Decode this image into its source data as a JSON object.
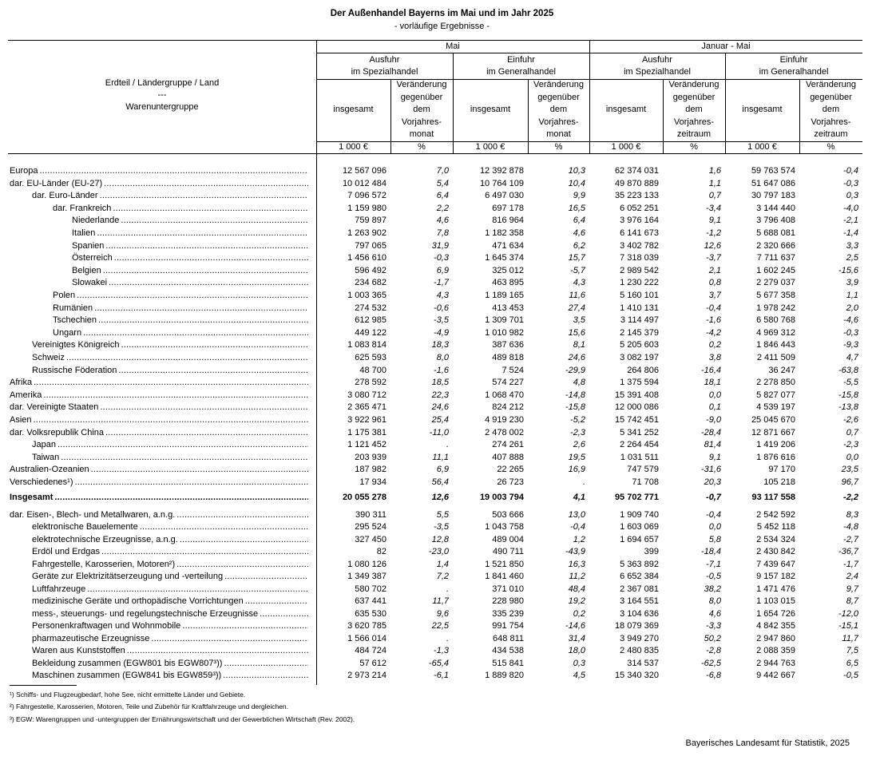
{
  "title": "Der Außenhandel Bayerns im Mai und im Jahr 2025",
  "subtitle": "- vorläufige Ergebnisse -",
  "header": {
    "row_label": [
      "Erdteil / Ländergruppe / Land",
      "---",
      "Warenuntergruppe"
    ],
    "periods": [
      "Mai",
      "Januar - Mai"
    ],
    "groups": [
      [
        "Ausfuhr",
        "im Spezialhandel"
      ],
      [
        "Einfuhr",
        "im Generalhandel"
      ],
      [
        "Ausfuhr",
        "im Spezialhandel"
      ],
      [
        "Einfuhr",
        "im Generalhandel"
      ]
    ],
    "sub": [
      [
        "insgesamt"
      ],
      [
        "Veränderung",
        "gegenüber",
        "dem",
        "Vorjahres-",
        "monat"
      ],
      [
        "insgesamt"
      ],
      [
        "Veränderung",
        "gegenüber",
        "dem",
        "Vorjahres-",
        "monat"
      ],
      [
        "insgesamt"
      ],
      [
        "Veränderung",
        "gegenüber",
        "dem",
        "Vorjahres-",
        "zeitraum"
      ],
      [
        "insgesamt"
      ],
      [
        "Veränderung",
        "gegenüber",
        "dem",
        "Vorjahres-",
        "zeitraum"
      ]
    ],
    "units": [
      "1 000 €",
      "%",
      "1 000 €",
      "%",
      "1 000 €",
      "%",
      "1 000 €",
      "%"
    ]
  },
  "regions": [
    {
      "label": "Europa",
      "level": 0,
      "values": [
        "12 567 096",
        "7,0",
        "12 392 878",
        "10,3",
        "62 374 031",
        "1,6",
        "59 763 574",
        "-0,4"
      ]
    },
    {
      "label": "dar. EU-Länder (EU-27)",
      "level": 0,
      "values": [
        "10 012 484",
        "5,4",
        "10 764 109",
        "10,4",
        "49 870 889",
        "1,1",
        "51 647 086",
        "-0,3"
      ]
    },
    {
      "label": "dar. Euro-Länder",
      "level": 1,
      "values": [
        "7 096 572",
        "6,4",
        "6 497 030",
        "9,9",
        "35 223 133",
        "0,7",
        "30 797 183",
        "0,3"
      ]
    },
    {
      "label": "dar. Frankreich",
      "level": 2,
      "values": [
        "1 159 980",
        "2,2",
        "697 178",
        "16,5",
        "6 052 251",
        "-3,4",
        "3 144 440",
        "-4,0"
      ]
    },
    {
      "label": "Niederlande",
      "level": 3,
      "values": [
        "759 897",
        "4,6",
        "816 964",
        "6,4",
        "3 976 164",
        "9,1",
        "3 796 408",
        "-2,1"
      ]
    },
    {
      "label": "Italien",
      "level": 3,
      "values": [
        "1 263 902",
        "7,8",
        "1 182 358",
        "4,6",
        "6 141 673",
        "-1,2",
        "5 688 081",
        "-1,4"
      ]
    },
    {
      "label": "Spanien",
      "level": 3,
      "values": [
        "797 065",
        "31,9",
        "471 634",
        "6,2",
        "3 402 782",
        "12,6",
        "2 320 666",
        "3,3"
      ]
    },
    {
      "label": "Österreich",
      "level": 3,
      "values": [
        "1 456 610",
        "-0,3",
        "1 645 374",
        "15,7",
        "7 318 039",
        "-3,7",
        "7 711 637",
        "2,5"
      ]
    },
    {
      "label": "Belgien",
      "level": 3,
      "values": [
        "596 492",
        "6,9",
        "325 012",
        "-5,7",
        "2 989 542",
        "2,1",
        "1 602 245",
        "-15,6"
      ]
    },
    {
      "label": "Slowakei",
      "level": 3,
      "values": [
        "234 682",
        "-1,7",
        "463 895",
        "4,3",
        "1 230 222",
        "0,8",
        "2 279 037",
        "3,9"
      ]
    },
    {
      "label": "Polen",
      "level": 2,
      "values": [
        "1 003 365",
        "4,3",
        "1 189 165",
        "11,6",
        "5 160 101",
        "3,7",
        "5 677 358",
        "1,1"
      ]
    },
    {
      "label": "Rumänien",
      "level": 2,
      "values": [
        "274 532",
        "-0,6",
        "413 453",
        "27,4",
        "1 410 131",
        "-0,4",
        "1 978 242",
        "2,0"
      ]
    },
    {
      "label": "Tschechien",
      "level": 2,
      "values": [
        "612 985",
        "-3,5",
        "1 309 701",
        "3,5",
        "3 114 497",
        "-1,6",
        "6 580 768",
        "-4,6"
      ]
    },
    {
      "label": "Ungarn",
      "level": 2,
      "values": [
        "449 122",
        "-4,9",
        "1 010 982",
        "15,6",
        "2 145 379",
        "-4,2",
        "4 969 312",
        "-0,3"
      ]
    },
    {
      "label": "Vereinigtes Königreich",
      "level": 1,
      "values": [
        "1 083 814",
        "18,3",
        "387 636",
        "8,1",
        "5 205 603",
        "0,2",
        "1 846 443",
        "-9,3"
      ]
    },
    {
      "label": "Schweiz",
      "level": 1,
      "values": [
        "625 593",
        "8,0",
        "489 818",
        "24,6",
        "3 082 197",
        "3,8",
        "2 411 509",
        "4,7"
      ]
    },
    {
      "label": "Russische Föderation",
      "level": 1,
      "values": [
        "48 700",
        "-1,6",
        "7 524",
        "-29,9",
        "264 806",
        "-16,4",
        "36 247",
        "-63,8"
      ]
    },
    {
      "label": "Afrika",
      "level": 0,
      "values": [
        "278 592",
        "18,5",
        "574 227",
        "4,8",
        "1 375 594",
        "18,1",
        "2 278 850",
        "-5,5"
      ]
    },
    {
      "label": "Amerika",
      "level": 0,
      "values": [
        "3 080 712",
        "22,3",
        "1 068 470",
        "-14,8",
        "15 391 408",
        "0,0",
        "5 827 077",
        "-15,8"
      ]
    },
    {
      "label": "dar. Vereinigte Staaten",
      "level": 0,
      "values": [
        "2 365 471",
        "24,6",
        "824 212",
        "-15,8",
        "12 000 086",
        "0,1",
        "4 539 197",
        "-13,8"
      ]
    },
    {
      "label": "Asien",
      "level": 0,
      "values": [
        "3 922 961",
        "25,4",
        "4 919 230",
        "-5,2",
        "15 742 451",
        "-9,0",
        "25 045 670",
        "-2,6"
      ]
    },
    {
      "label": "dar. Volksrepublik China",
      "level": 0,
      "values": [
        "1 175 381",
        "-11,0",
        "2 478 002",
        "-2,3",
        "5 341 252",
        "-28,4",
        "12 871 667",
        "0,7"
      ]
    },
    {
      "label": "Japan",
      "level": 1,
      "values": [
        "1 121 452",
        ".",
        "274 261",
        "2,6",
        "2 264 454",
        "81,4",
        "1 419 206",
        "-2,3"
      ]
    },
    {
      "label": "Taiwan",
      "level": 1,
      "values": [
        "203 939",
        "11,1",
        "407 888",
        "19,5",
        "1 031 511",
        "9,1",
        "1 876 616",
        "0,0"
      ]
    },
    {
      "label": "Australien-Ozeanien",
      "level": 0,
      "values": [
        "187 982",
        "6,9",
        "22 265",
        "16,9",
        "747 579",
        "-31,6",
        "97 170",
        "23,5"
      ]
    },
    {
      "label": "Verschiedenes¹)",
      "level": 0,
      "values": [
        "17 934",
        "56,4",
        "26 723",
        ".",
        "71 708",
        "20,3",
        "105 218",
        "96,7"
      ]
    }
  ],
  "total": {
    "label": "Insgesamt",
    "values": [
      "20 055 278",
      "12,6",
      "19 003 794",
      "4,1",
      "95 702 771",
      "-0,7",
      "93 117 558",
      "-2,2"
    ]
  },
  "goods": [
    {
      "label": "dar. Eisen-, Blech- und Metallwaren, a.n.g.",
      "level": 0,
      "values": [
        "390 311",
        "5,5",
        "503 666",
        "13,0",
        "1 909 740",
        "-0,4",
        "2 542 592",
        "8,3"
      ]
    },
    {
      "label": "elektronische Bauelemente",
      "level": 1,
      "values": [
        "295 524",
        "-3,5",
        "1 043 758",
        "-0,4",
        "1 603 069",
        "0,0",
        "5 452 118",
        "-4,8"
      ]
    },
    {
      "label": "elektrotechnische Erzeugnisse, a.n.g.",
      "level": 1,
      "values": [
        "327 450",
        "12,8",
        "489 004",
        "1,2",
        "1 694 657",
        "5,8",
        "2 534 324",
        "-2,7"
      ]
    },
    {
      "label": "Erdöl und Erdgas",
      "level": 1,
      "values": [
        "82",
        "-23,0",
        "490 711",
        "-43,9",
        "399",
        "-18,4",
        "2 430 842",
        "-36,7"
      ]
    },
    {
      "label": "Fahrgestelle, Karosserien, Motoren²)",
      "level": 1,
      "values": [
        "1 080 126",
        "1,4",
        "1 521 850",
        "16,3",
        "5 363 892",
        "-7,1",
        "7 439 647",
        "-1,7"
      ]
    },
    {
      "label": "Geräte zur Elektrizitätserzeugung und -verteilung",
      "level": 1,
      "values": [
        "1 349 387",
        "7,2",
        "1 841 460",
        "11,2",
        "6 652 384",
        "-0,5",
        "9 157 182",
        "2,4"
      ]
    },
    {
      "label": "Luftfahrzeuge",
      "level": 1,
      "values": [
        "580 702",
        ".",
        "371 010",
        "48,4",
        "2 367 081",
        "38,2",
        "1 471 476",
        "9,7"
      ]
    },
    {
      "label": "medizinische Geräte und orthopädische Vorrichtungen",
      "level": 1,
      "values": [
        "637 441",
        "11,7",
        "228 980",
        "19,2",
        "3 164 551",
        "8,0",
        "1 103 015",
        "8,7"
      ]
    },
    {
      "label": "mess-, steuerungs- und regelungstechnische Erzeugnisse",
      "level": 1,
      "values": [
        "635 530",
        "9,6",
        "335 239",
        "0,2",
        "3 104 636",
        "4,6",
        "1 654 726",
        "-12,0"
      ]
    },
    {
      "label": "Personenkraftwagen und Wohnmobile",
      "level": 1,
      "values": [
        "3 620 785",
        "22,5",
        "991 754",
        "-14,6",
        "18 079 369",
        "-3,3",
        "4 842 355",
        "-15,1"
      ]
    },
    {
      "label": "pharmazeutische Erzeugnisse",
      "level": 1,
      "values": [
        "1 566 014",
        ".",
        "648 811",
        "31,4",
        "3 949 270",
        "50,2",
        "2 947 860",
        "11,7"
      ]
    },
    {
      "label": "Waren aus Kunststoffen",
      "level": 1,
      "values": [
        "484 724",
        "-1,3",
        "434 538",
        "18,0",
        "2 480 835",
        "-2,8",
        "2 088 359",
        "7,5"
      ]
    },
    {
      "label": "Bekleidung zusammen (EGW801 bis EGW807³))",
      "level": 1,
      "values": [
        "57 612",
        "-65,4",
        "515 841",
        "0,3",
        "314 537",
        "-62,5",
        "2 944 763",
        "6,5"
      ]
    },
    {
      "label": "Maschinen zusammen (EGW841 bis EGW859³))",
      "level": 1,
      "values": [
        "2 973 214",
        "-6,1",
        "1 889 820",
        "4,5",
        "15 340 320",
        "-6,8",
        "9 442 667",
        "-0,5"
      ]
    }
  ],
  "footnotes": [
    "¹) Schiffs- und Flugzeugbedarf, hohe See, nicht ermittelte Länder und Gebiete.",
    "²) Fahrgestelle, Karosserien, Motoren, Teile und Zubehör für Kraftfahrzeuge und dergleichen.",
    "³) EGW: Warengruppen und -untergruppen der Ernährungswirtschaft und der Gewerblichen Wirtschaft (Rev. 2002)."
  ],
  "source": "Bayerisches Landesamt für Statistik, 2025"
}
